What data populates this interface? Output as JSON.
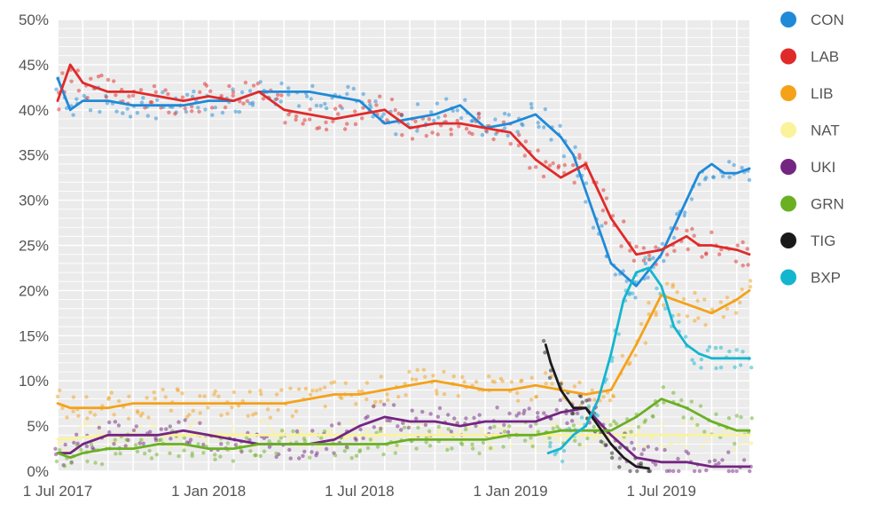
{
  "chart_data": {
    "type": "line",
    "title": "",
    "xlabel": "",
    "ylabel": "",
    "y_tick_labels": [
      "0%",
      "5%",
      "10%",
      "15%",
      "20%",
      "25%",
      "30%",
      "35%",
      "40%",
      "45%",
      "50%"
    ],
    "y_ticks": [
      0,
      5,
      10,
      15,
      20,
      25,
      30,
      35,
      40,
      45,
      50
    ],
    "ylim": [
      0,
      50
    ],
    "x_tick_labels": [
      "1 Jul 2017",
      "1 Jan 2018",
      "1 Jul 2018",
      "1 Jan 2019",
      "1 Jul 2019"
    ],
    "x_ticks": [
      0,
      6,
      12,
      18,
      24
    ],
    "xlim": [
      0,
      27.5
    ],
    "x_units": "months since 1 Jul 2017",
    "grid": true,
    "legend_position": "right",
    "series": [
      {
        "name": "CON",
        "color": "#1f8ad8",
        "x": [
          0,
          0.5,
          1,
          2,
          3,
          4,
          5,
          6,
          7,
          8,
          9,
          10,
          11,
          12,
          13,
          14,
          15,
          16,
          17,
          18,
          19,
          20,
          20.5,
          21,
          22,
          23,
          24,
          25,
          25.5,
          26,
          26.5,
          27,
          27.5
        ],
        "values": [
          43.5,
          40,
          41,
          41,
          40.5,
          40.5,
          40.5,
          41,
          41,
          42,
          42,
          42,
          41.5,
          41,
          38.5,
          39,
          39.5,
          40.5,
          38,
          38.5,
          39.5,
          37,
          35,
          31,
          23,
          20.5,
          24,
          30,
          33,
          34,
          33,
          33,
          33.5
        ]
      },
      {
        "name": "LAB",
        "color": "#e02a2a",
        "x": [
          0,
          0.5,
          1,
          1.5,
          2,
          3,
          4,
          5,
          6,
          7,
          8,
          9,
          10,
          11,
          12,
          13,
          14,
          15,
          16,
          17,
          18,
          19,
          20,
          21,
          22,
          23,
          24,
          25,
          25.5,
          26,
          27,
          27.5
        ],
        "values": [
          41,
          45,
          43,
          42.5,
          42,
          42,
          41.5,
          41,
          41.5,
          41,
          42,
          40,
          39.5,
          39,
          39.5,
          40,
          38,
          38.5,
          38.5,
          38,
          37.5,
          34.5,
          32.5,
          34,
          28,
          24,
          24.5,
          26,
          25,
          25,
          24.5,
          24
        ]
      },
      {
        "name": "LIB",
        "color": "#f4a21a",
        "x": [
          0,
          0.5,
          1,
          2,
          3,
          4,
          5,
          6,
          7,
          8,
          9,
          10,
          11,
          12,
          13,
          14,
          15,
          16,
          17,
          18,
          19,
          20,
          21,
          22,
          23,
          24,
          25,
          26,
          27,
          27.5
        ],
        "values": [
          7.5,
          7,
          7,
          7,
          7.5,
          7.5,
          7.5,
          7.5,
          7.5,
          7.5,
          7.5,
          8,
          8.5,
          8.5,
          9,
          9.5,
          10,
          9.5,
          9,
          9,
          9.5,
          9,
          8.5,
          9,
          14,
          19.5,
          18.5,
          17.5,
          19,
          20
        ]
      },
      {
        "name": "NAT",
        "color": "#fbf39c",
        "x": [
          0,
          2,
          4,
          6,
          8,
          10,
          12,
          14,
          16,
          18,
          20,
          22,
          24,
          26,
          27.5
        ],
        "values": [
          3.5,
          4,
          4,
          4,
          4,
          4,
          4,
          4,
          4,
          4,
          4,
          4,
          4,
          4,
          4
        ]
      },
      {
        "name": "UKI",
        "color": "#742582",
        "x": [
          0,
          0.5,
          1,
          2,
          3,
          4,
          5,
          6,
          7,
          8,
          9,
          10,
          11,
          12,
          13,
          14,
          15,
          16,
          17,
          18,
          19,
          20,
          21,
          22,
          23,
          24,
          25,
          26,
          27,
          27.5
        ],
        "values": [
          2,
          2,
          3,
          4,
          4,
          4,
          4.5,
          4,
          3.5,
          3,
          3,
          3,
          3.5,
          5,
          6,
          5.5,
          5.5,
          5,
          5.5,
          5.5,
          5.5,
          6.5,
          7,
          4,
          1.5,
          1,
          1,
          0.5,
          0.5,
          0.5
        ]
      },
      {
        "name": "GRN",
        "color": "#6ab023",
        "x": [
          0,
          0.5,
          1,
          2,
          3,
          4,
          5,
          6,
          7,
          8,
          9,
          10,
          11,
          12,
          13,
          14,
          15,
          16,
          17,
          18,
          19,
          20,
          21,
          22,
          23,
          24,
          25,
          26,
          27,
          27.5
        ],
        "values": [
          2,
          1.5,
          2,
          2.5,
          2.5,
          3,
          3,
          2.5,
          2.5,
          3,
          3,
          3,
          3,
          3,
          3,
          3.5,
          3.5,
          3.5,
          3.5,
          4,
          4,
          4.5,
          4.5,
          4.5,
          6,
          8,
          7,
          5.5,
          4.5,
          4.5
        ]
      },
      {
        "name": "TIG",
        "color": "#1a1a1a",
        "x": [
          19.4,
          19.6,
          20,
          20.5,
          21,
          21.5,
          22,
          22.5,
          23,
          23.5
        ],
        "values": [
          14,
          12,
          9,
          7,
          7,
          5,
          3,
          1.5,
          0.5,
          0.3
        ]
      },
      {
        "name": "BXP",
        "color": "#14b5cf",
        "x": [
          19.5,
          20,
          20.5,
          21,
          21.5,
          22,
          22.5,
          23,
          23.5,
          24,
          24.5,
          25,
          25.5,
          26,
          26.5,
          27,
          27.5
        ],
        "values": [
          2,
          2.5,
          4,
          5,
          8,
          13,
          19,
          22,
          22.5,
          20.5,
          16,
          14,
          13,
          12.5,
          12.5,
          12.5,
          12.5
        ]
      }
    ]
  }
}
